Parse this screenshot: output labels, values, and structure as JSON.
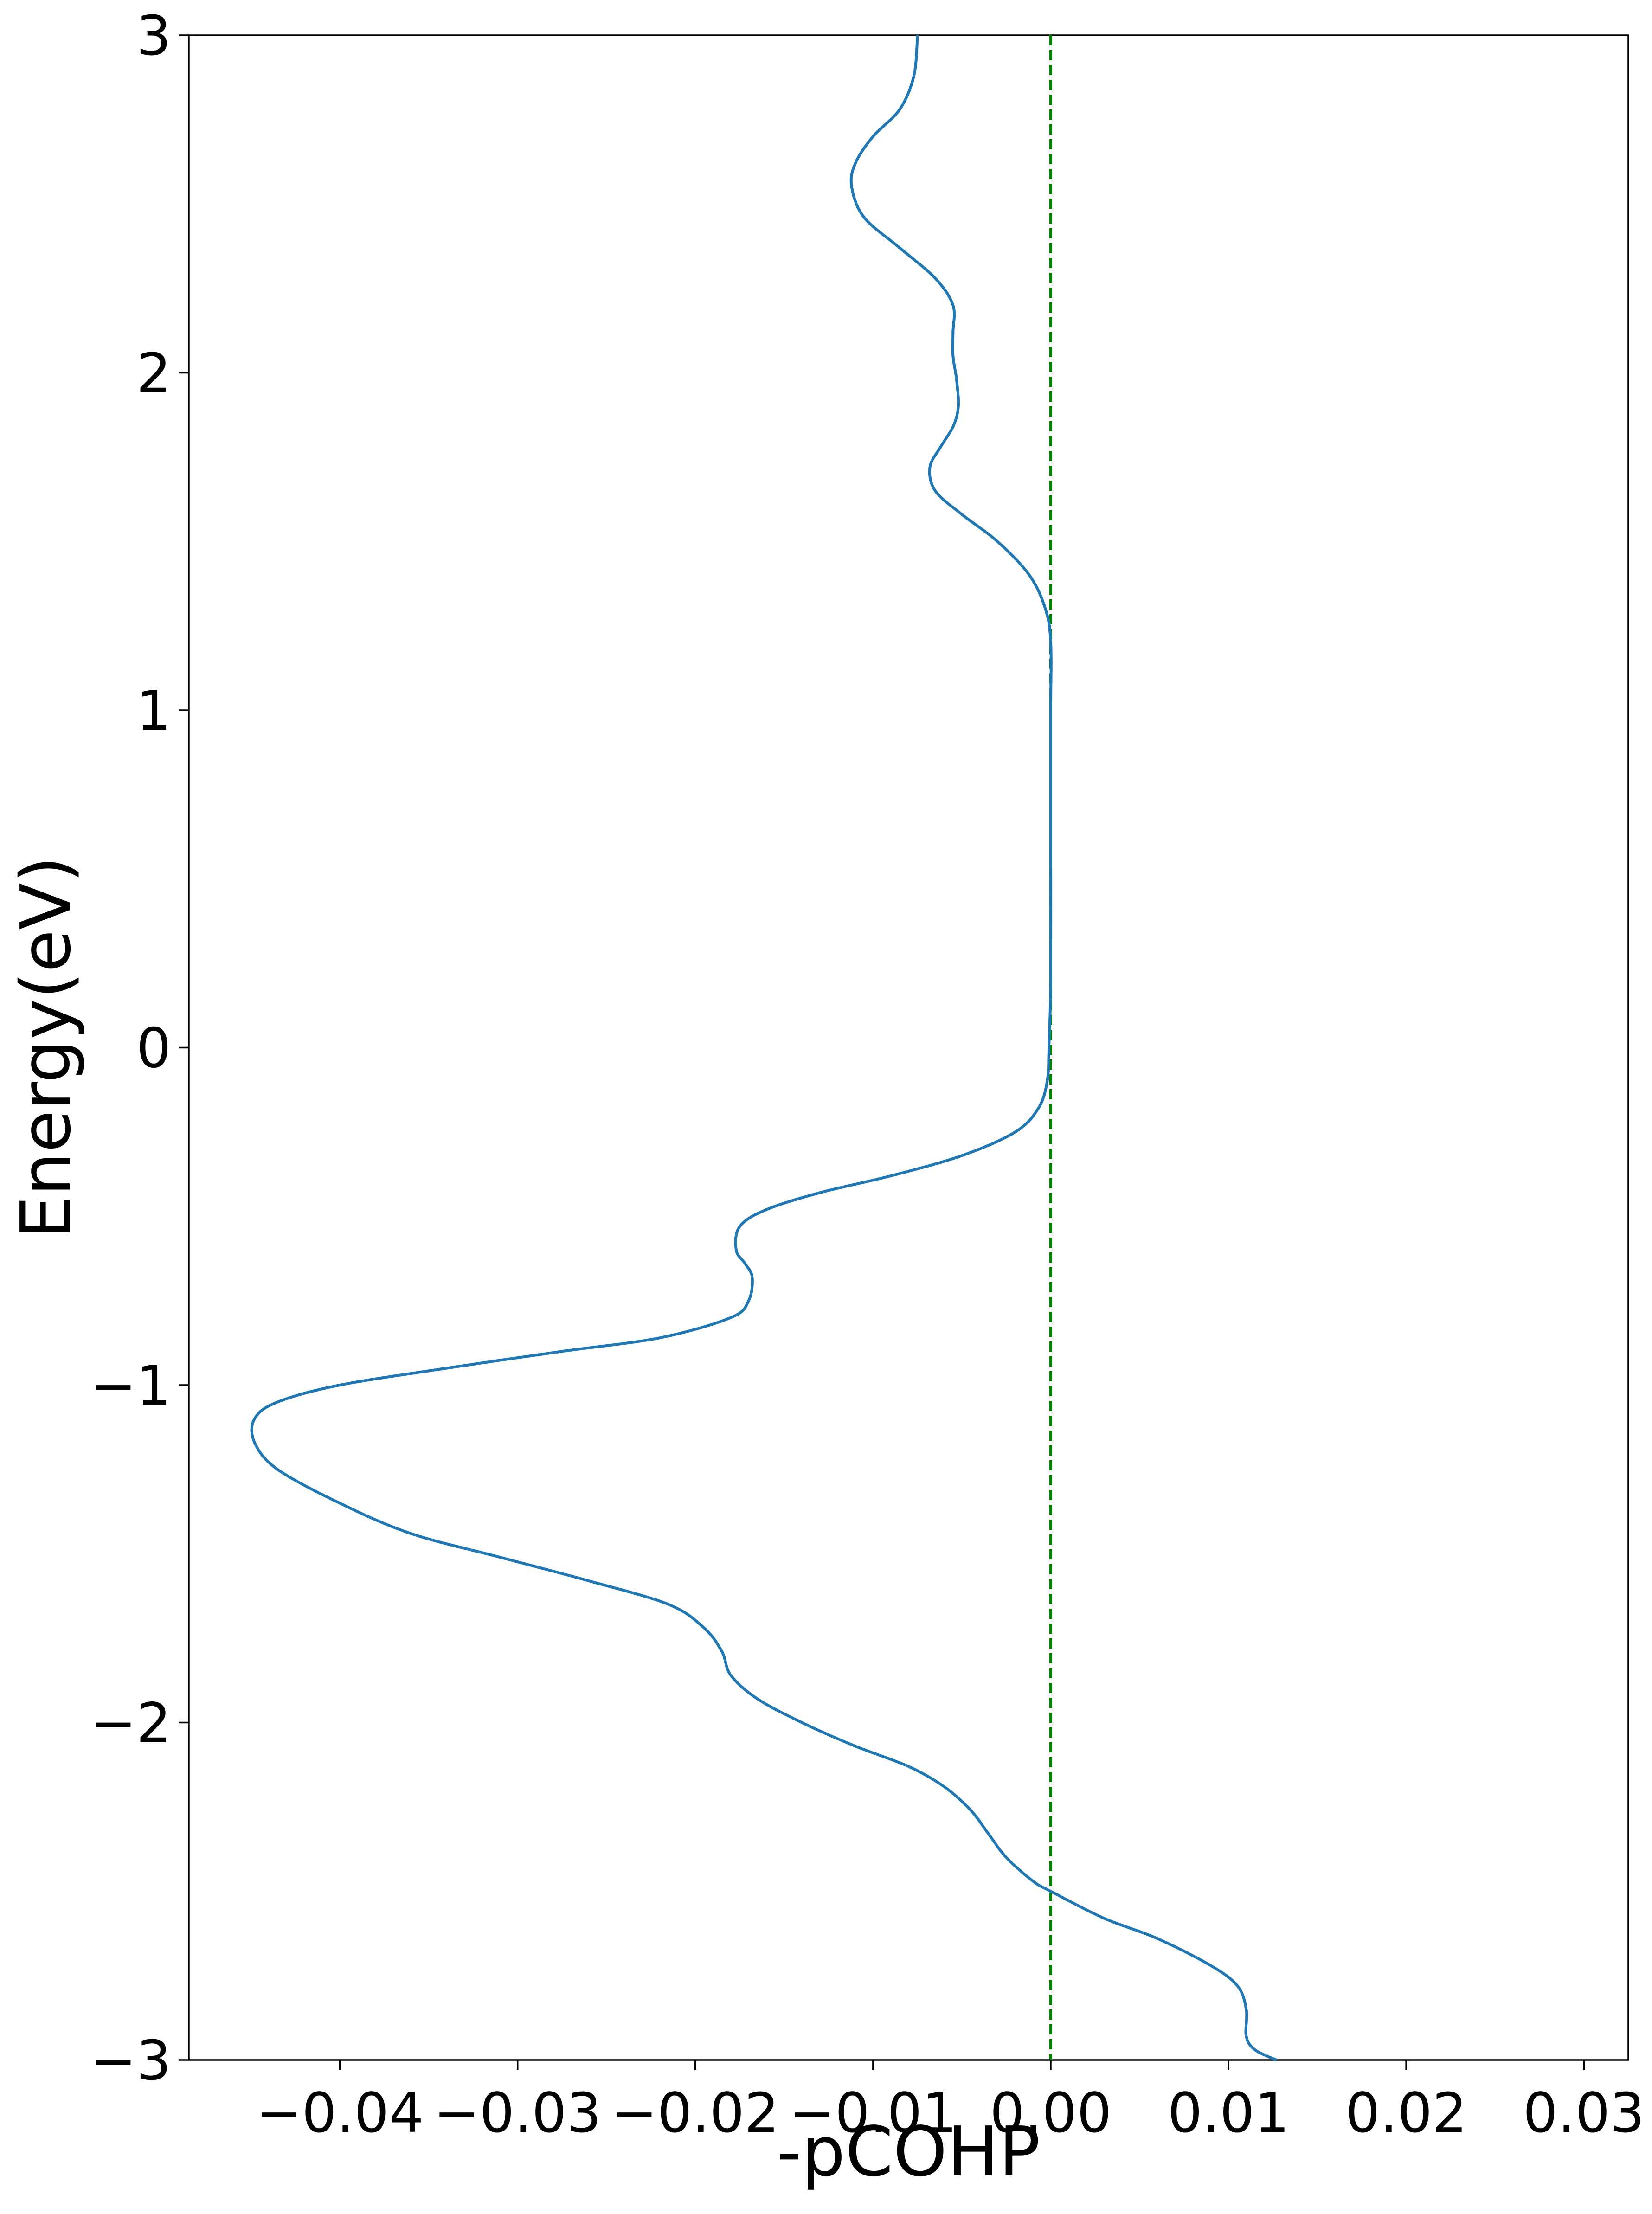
{
  "chart_data": {
    "type": "line",
    "title": "",
    "xlabel": "-pCOHP",
    "ylabel": "Energy(eV)",
    "xlim": [
      -0.0485,
      0.0325
    ],
    "ylim": [
      -3,
      3
    ],
    "xticks": [
      -0.04,
      -0.03,
      -0.02,
      -0.01,
      0.0,
      0.01,
      0.02,
      0.03
    ],
    "xtick_labels": [
      "−0.04",
      "−0.03",
      "−0.02",
      "−0.01",
      "0.00",
      "0.01",
      "0.02",
      "0.03"
    ],
    "yticks": [
      -3,
      -2,
      -1,
      0,
      1,
      2,
      3
    ],
    "ytick_labels": [
      "−3",
      "−2",
      "−1",
      "0",
      "1",
      "2",
      "3"
    ],
    "grid": false,
    "reference_line": {
      "x": 0.0,
      "style": "dashed",
      "color": "#008000"
    },
    "series": [
      {
        "color": "#1f77b4",
        "points": [
          [
            0.0127,
            -3.0
          ],
          [
            0.0115,
            -2.97
          ],
          [
            0.011,
            -2.93
          ],
          [
            0.011,
            -2.85
          ],
          [
            0.0105,
            -2.78
          ],
          [
            0.009,
            -2.72
          ],
          [
            0.006,
            -2.64
          ],
          [
            0.003,
            -2.58
          ],
          [
            0.0,
            -2.5
          ],
          [
            -0.001,
            -2.47
          ],
          [
            -0.0025,
            -2.4
          ],
          [
            -0.0035,
            -2.33
          ],
          [
            -0.0045,
            -2.26
          ],
          [
            -0.006,
            -2.19
          ],
          [
            -0.008,
            -2.13
          ],
          [
            -0.011,
            -2.07
          ],
          [
            -0.014,
            -2.0
          ],
          [
            -0.0165,
            -1.93
          ],
          [
            -0.018,
            -1.86
          ],
          [
            -0.0185,
            -1.79
          ],
          [
            -0.0195,
            -1.72
          ],
          [
            -0.0215,
            -1.65
          ],
          [
            -0.026,
            -1.58
          ],
          [
            -0.031,
            -1.51
          ],
          [
            -0.036,
            -1.44
          ],
          [
            -0.04,
            -1.35
          ],
          [
            -0.0435,
            -1.25
          ],
          [
            -0.0448,
            -1.17
          ],
          [
            -0.0448,
            -1.1
          ],
          [
            -0.0435,
            -1.05
          ],
          [
            -0.04,
            -1.0
          ],
          [
            -0.034,
            -0.95
          ],
          [
            -0.0275,
            -0.9
          ],
          [
            -0.022,
            -0.86
          ],
          [
            -0.018,
            -0.8
          ],
          [
            -0.017,
            -0.75
          ],
          [
            -0.0168,
            -0.68
          ],
          [
            -0.0172,
            -0.64
          ],
          [
            -0.0177,
            -0.6
          ],
          [
            -0.0175,
            -0.53
          ],
          [
            -0.016,
            -0.48
          ],
          [
            -0.013,
            -0.43
          ],
          [
            -0.009,
            -0.38
          ],
          [
            -0.005,
            -0.32
          ],
          [
            -0.002,
            -0.25
          ],
          [
            -0.0007,
            -0.18
          ],
          [
            -0.0002,
            -0.1
          ],
          [
            -0.0001,
            0.0
          ],
          [
            0.0,
            0.2
          ],
          [
            0.0,
            0.6
          ],
          [
            0.0,
            1.0
          ],
          [
            0.0,
            1.2
          ],
          [
            -0.0003,
            1.3
          ],
          [
            -0.0012,
            1.4
          ],
          [
            -0.003,
            1.5
          ],
          [
            -0.005,
            1.58
          ],
          [
            -0.0065,
            1.65
          ],
          [
            -0.0068,
            1.72
          ],
          [
            -0.0062,
            1.78
          ],
          [
            -0.0055,
            1.84
          ],
          [
            -0.0052,
            1.9
          ],
          [
            -0.0053,
            1.98
          ],
          [
            -0.0055,
            2.05
          ],
          [
            -0.0055,
            2.12
          ],
          [
            -0.0055,
            2.2
          ],
          [
            -0.0065,
            2.28
          ],
          [
            -0.0085,
            2.37
          ],
          [
            -0.0105,
            2.46
          ],
          [
            -0.0112,
            2.55
          ],
          [
            -0.011,
            2.62
          ],
          [
            -0.01,
            2.7
          ],
          [
            -0.0085,
            2.78
          ],
          [
            -0.0077,
            2.88
          ],
          [
            -0.0075,
            3.0
          ]
        ]
      }
    ]
  }
}
